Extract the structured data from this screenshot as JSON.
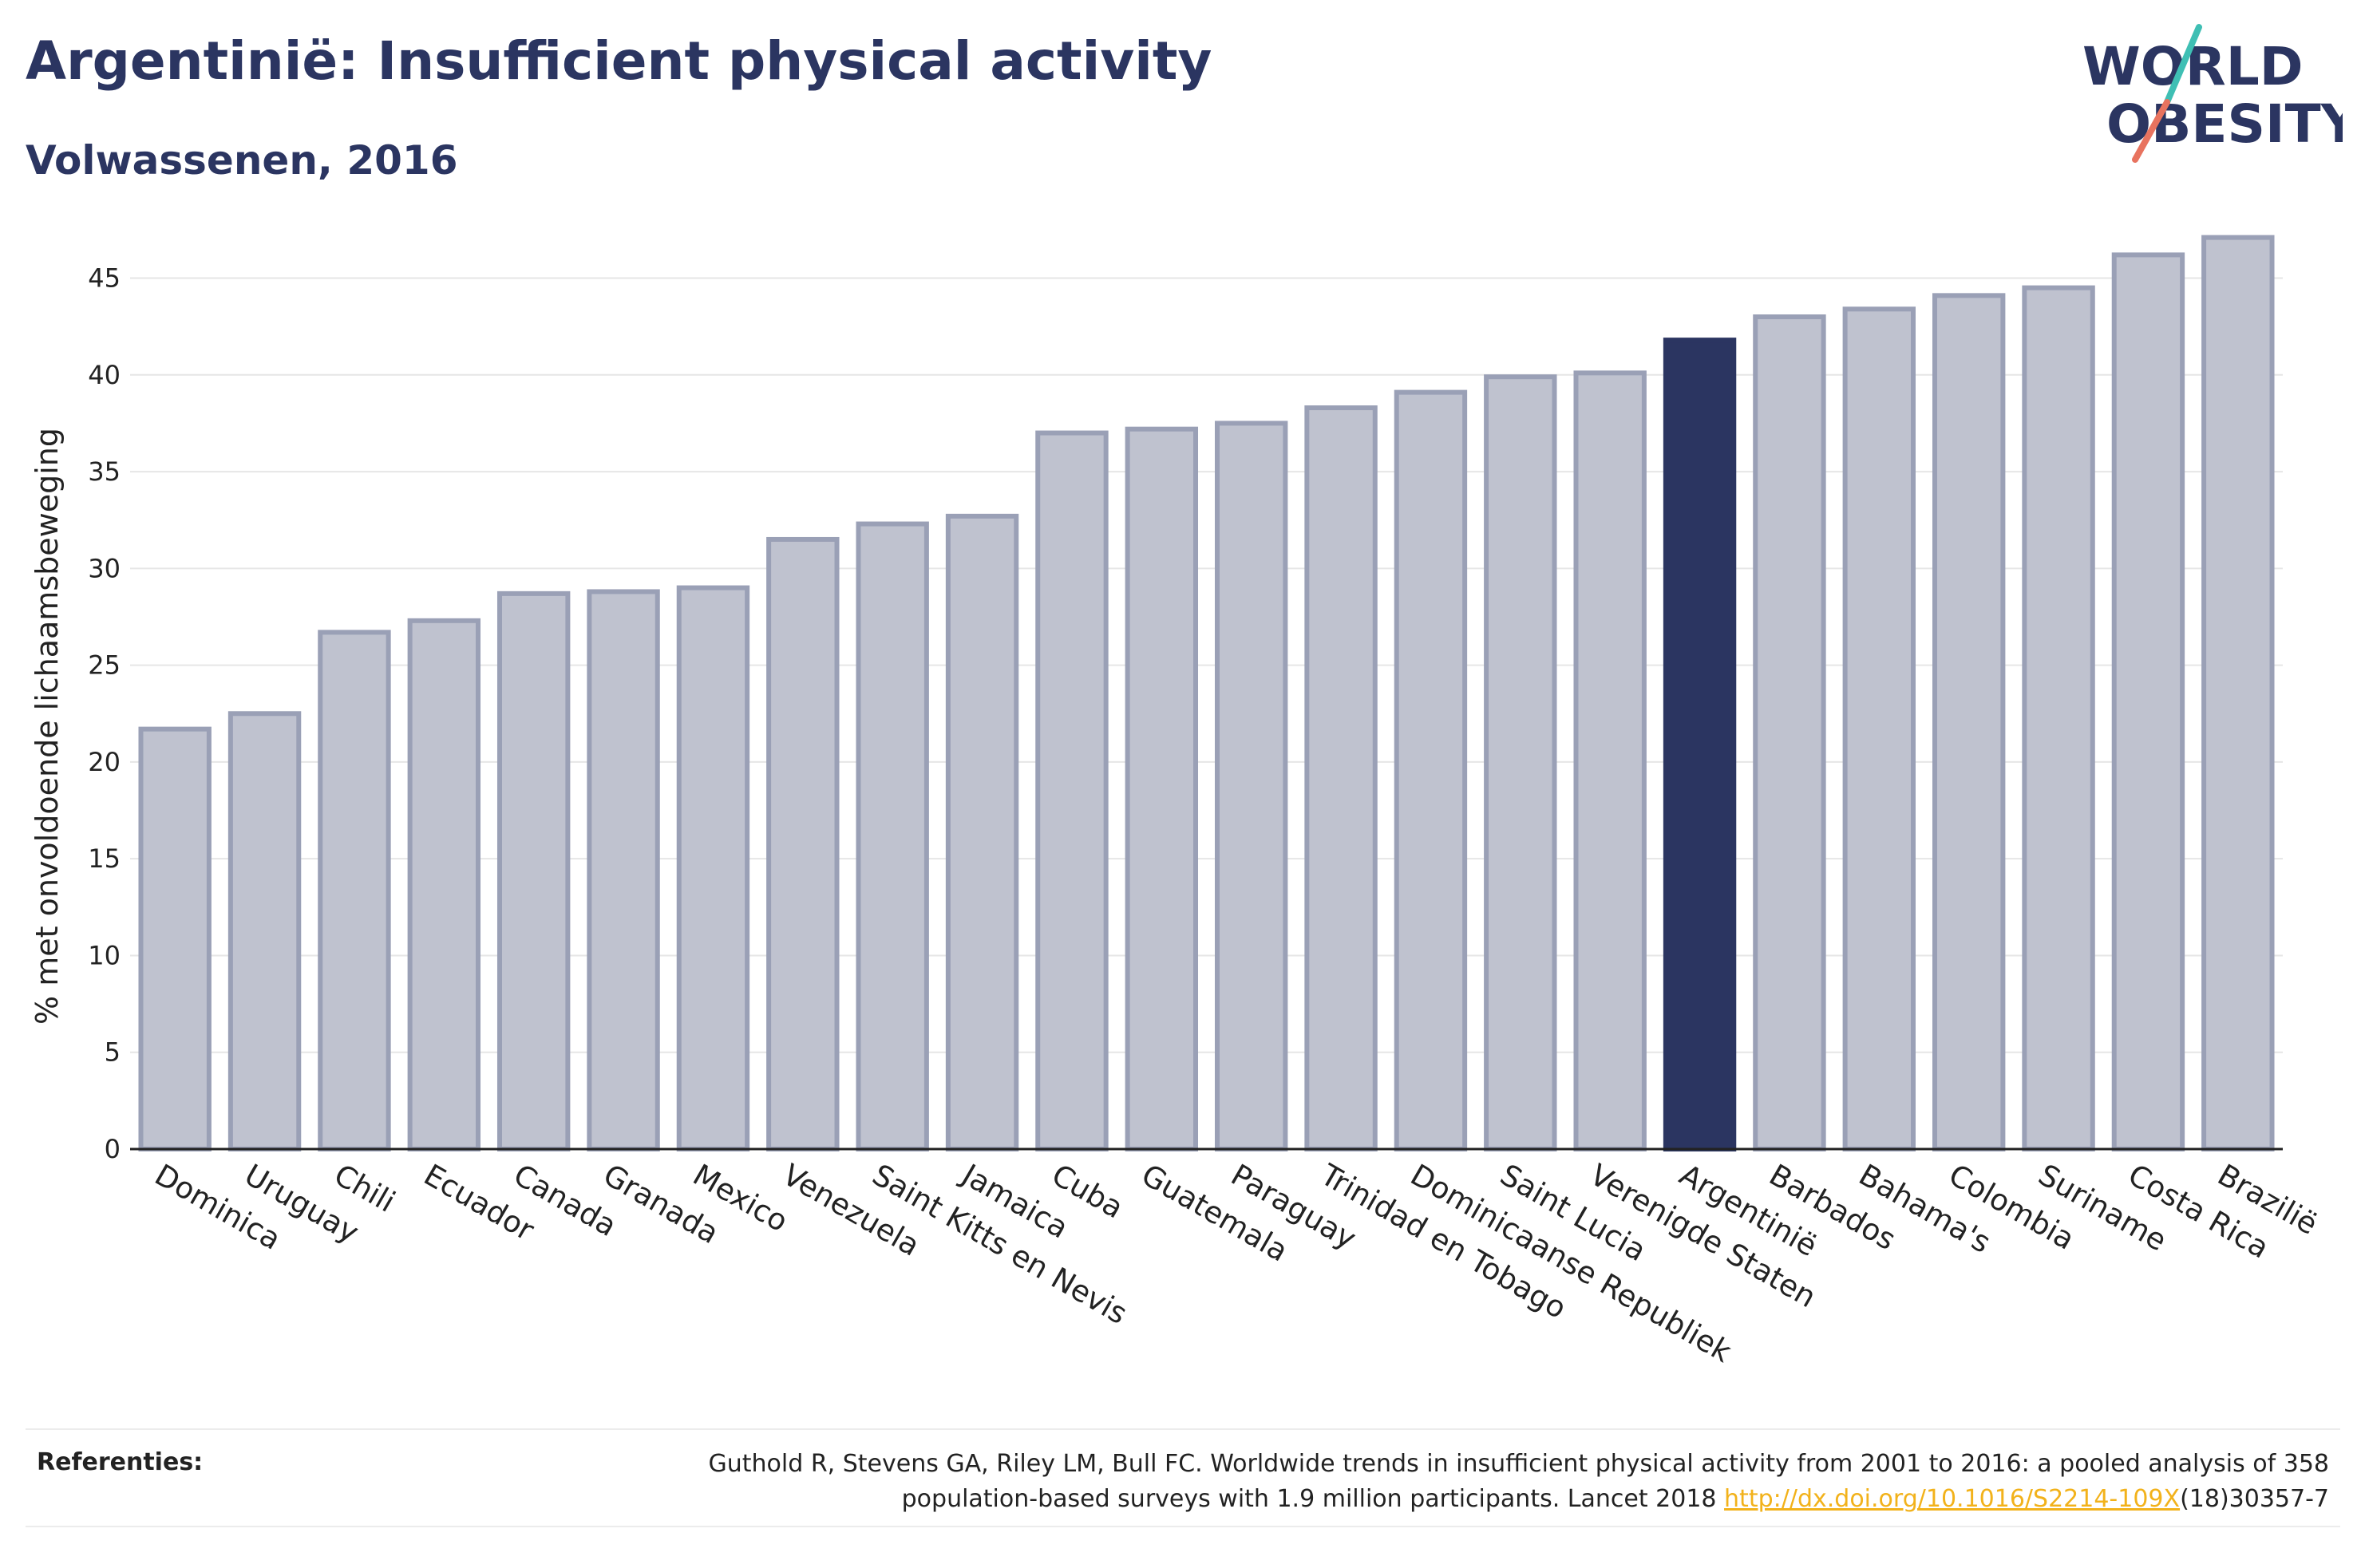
{
  "header": {
    "title": "Argentinië: Insufficient physical activity",
    "subtitle": "Volwassenen, 2016"
  },
  "logo": {
    "line1": "WORLD",
    "line2": "OBESITY",
    "colors": {
      "text": "#2b3561",
      "slash_top": "#3fbfb4",
      "slash_bottom": "#e8735f"
    }
  },
  "chart_data": {
    "type": "bar",
    "ylabel": "% met onvoldoende lichaamsbeweging",
    "ylim": [
      0,
      47
    ],
    "yticks": [
      0,
      5,
      10,
      15,
      20,
      25,
      30,
      35,
      40,
      45
    ],
    "grid": true,
    "highlight": "Argentinië",
    "colors": {
      "bar": "#bfc2cf",
      "bar_stroke": "#9aa0b6",
      "highlight": "#2b3561"
    },
    "categories": [
      "Dominica",
      "Uruguay",
      "Chili",
      "Ecuador",
      "Canada",
      "Granada",
      "Mexico",
      "Venezuela",
      "Saint Kitts en Nevis",
      "Jamaica",
      "Cuba",
      "Guatemala",
      "Paraguay",
      "Trinidad en Tobago",
      "Dominicaanse Republiek",
      "Saint Lucia",
      "Verenigde Staten",
      "Argentinië",
      "Barbados",
      "Bahama's",
      "Colombia",
      "Suriname",
      "Costa Rica",
      "Brazilië"
    ],
    "values": [
      21.7,
      22.5,
      26.7,
      27.3,
      28.7,
      28.8,
      29.0,
      31.5,
      32.3,
      32.7,
      37.0,
      37.2,
      37.5,
      38.3,
      39.1,
      39.9,
      40.1,
      41.8,
      43.0,
      43.4,
      44.1,
      44.5,
      46.2,
      47.1
    ]
  },
  "footer": {
    "references_label": "Referenties:",
    "reference_text_1": "Guthold R, Stevens GA, Riley LM, Bull FC. Worldwide trends in insufficient physical activity from 2001 to 2016: a pooled analysis of 358",
    "reference_text_2": "population-based surveys with 1.9 million participants. Lancet 2018",
    "reference_link": "http://dx.doi.org/10.1016/S2214-109X",
    "reference_suffix": "(18)30357-7"
  }
}
